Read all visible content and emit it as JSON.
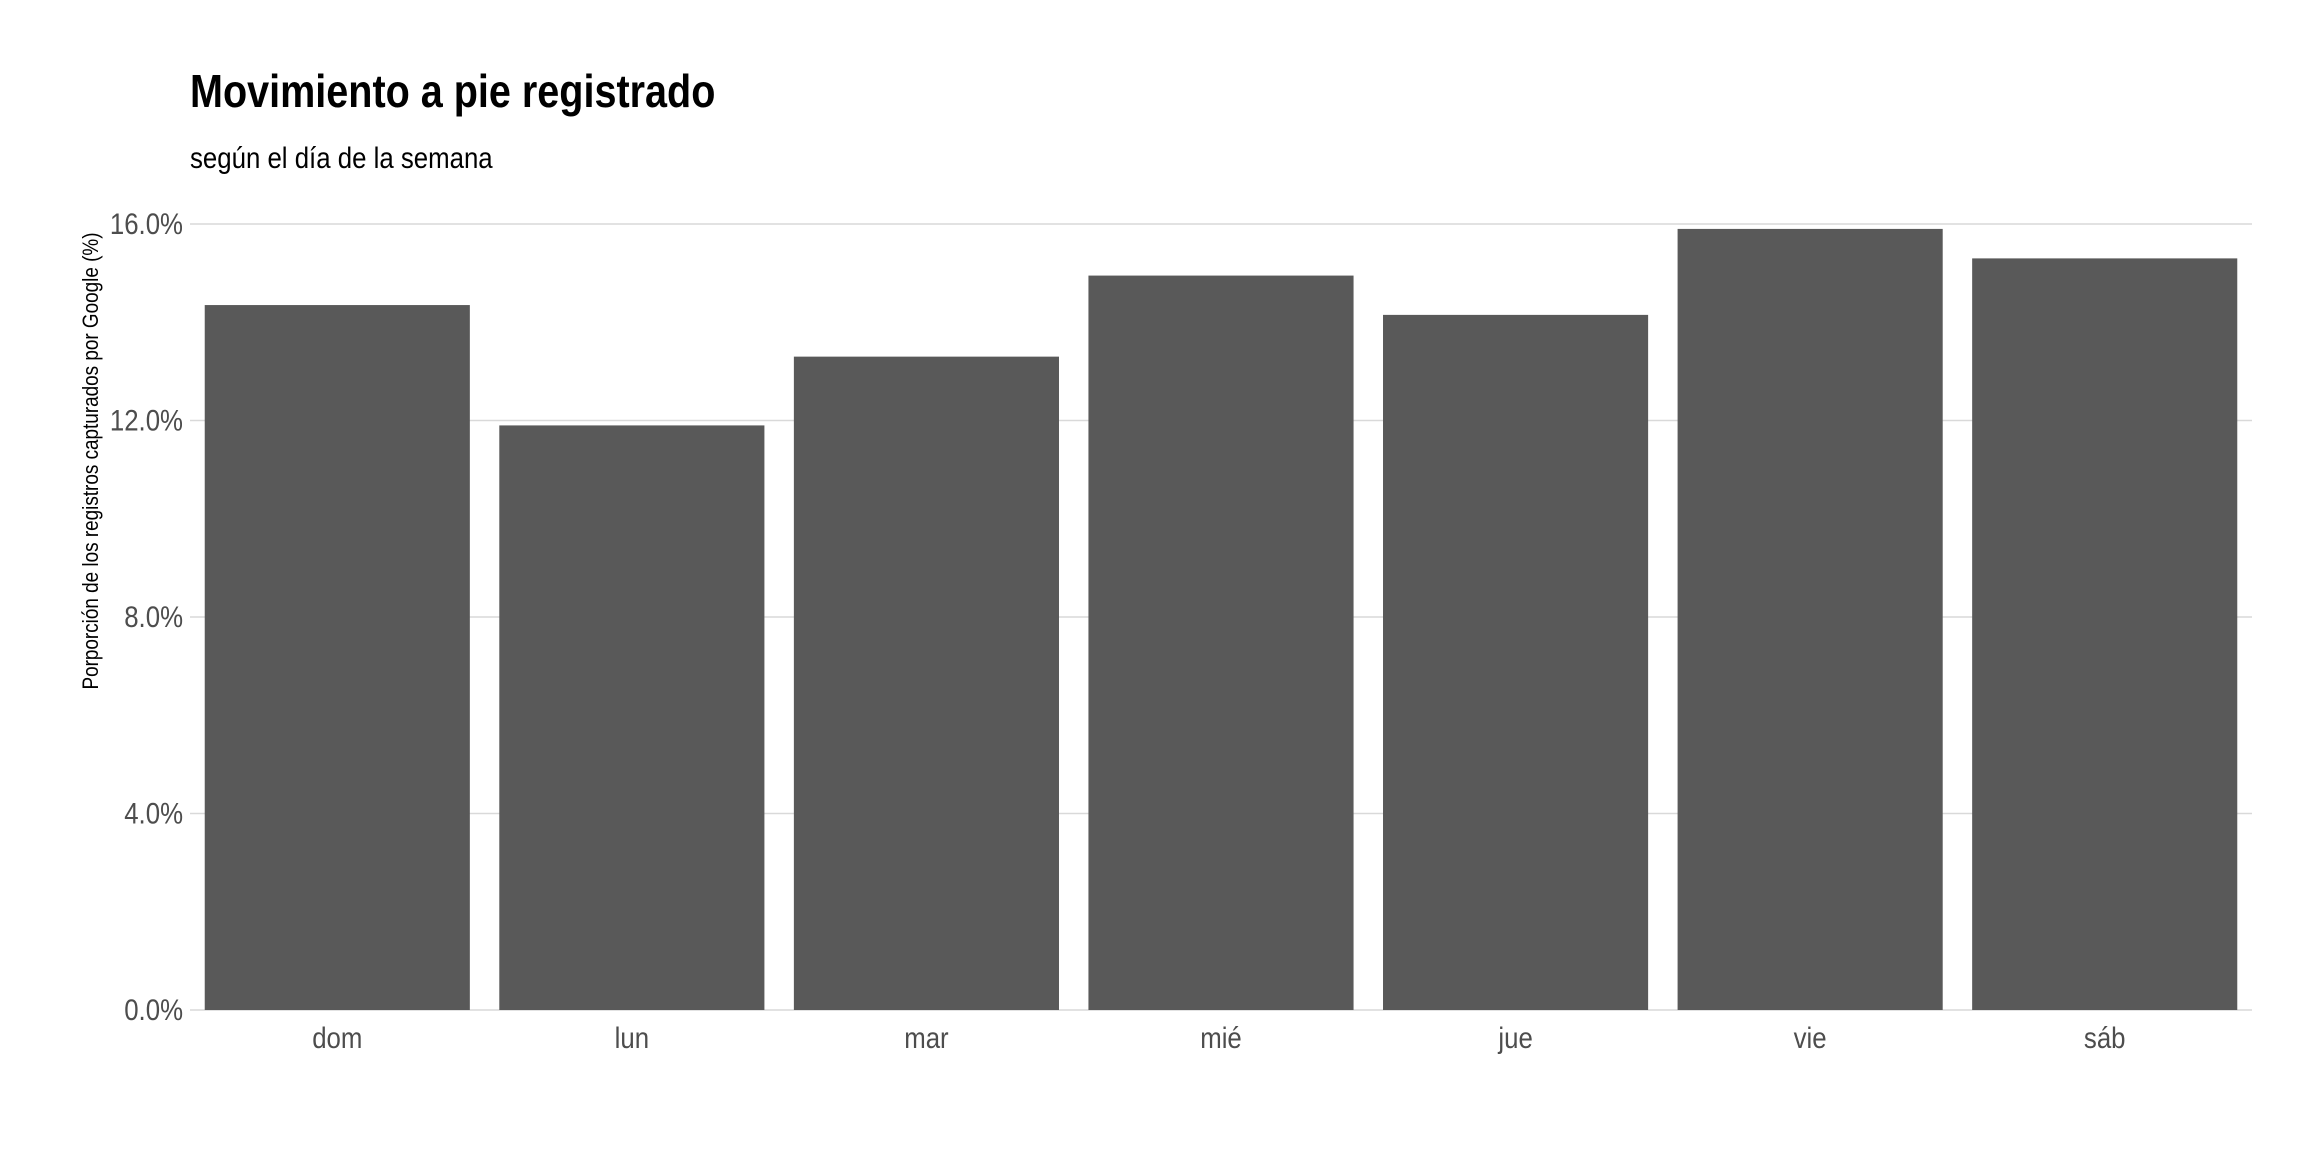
{
  "chart_data": {
    "type": "bar",
    "title": "Movimiento a pie registrado",
    "subtitle": "según el día de la semana",
    "xlabel": "",
    "ylabel": "Porporción de los registros capturados por Google (%)",
    "categories": [
      "dom",
      "lun",
      "mar",
      "mié",
      "jue",
      "vie",
      "sáb"
    ],
    "values": [
      14.35,
      11.9,
      13.3,
      14.95,
      14.15,
      15.9,
      15.3
    ],
    "ylim": [
      0,
      16
    ],
    "yticks": [
      0,
      4,
      8,
      12,
      16
    ],
    "ytick_labels": [
      "0.0%",
      "4.0%",
      "8.0%",
      "12.0%",
      "16.0%"
    ],
    "grid": true,
    "bar_color": "#595959",
    "grid_color": "#d9d9d9"
  }
}
